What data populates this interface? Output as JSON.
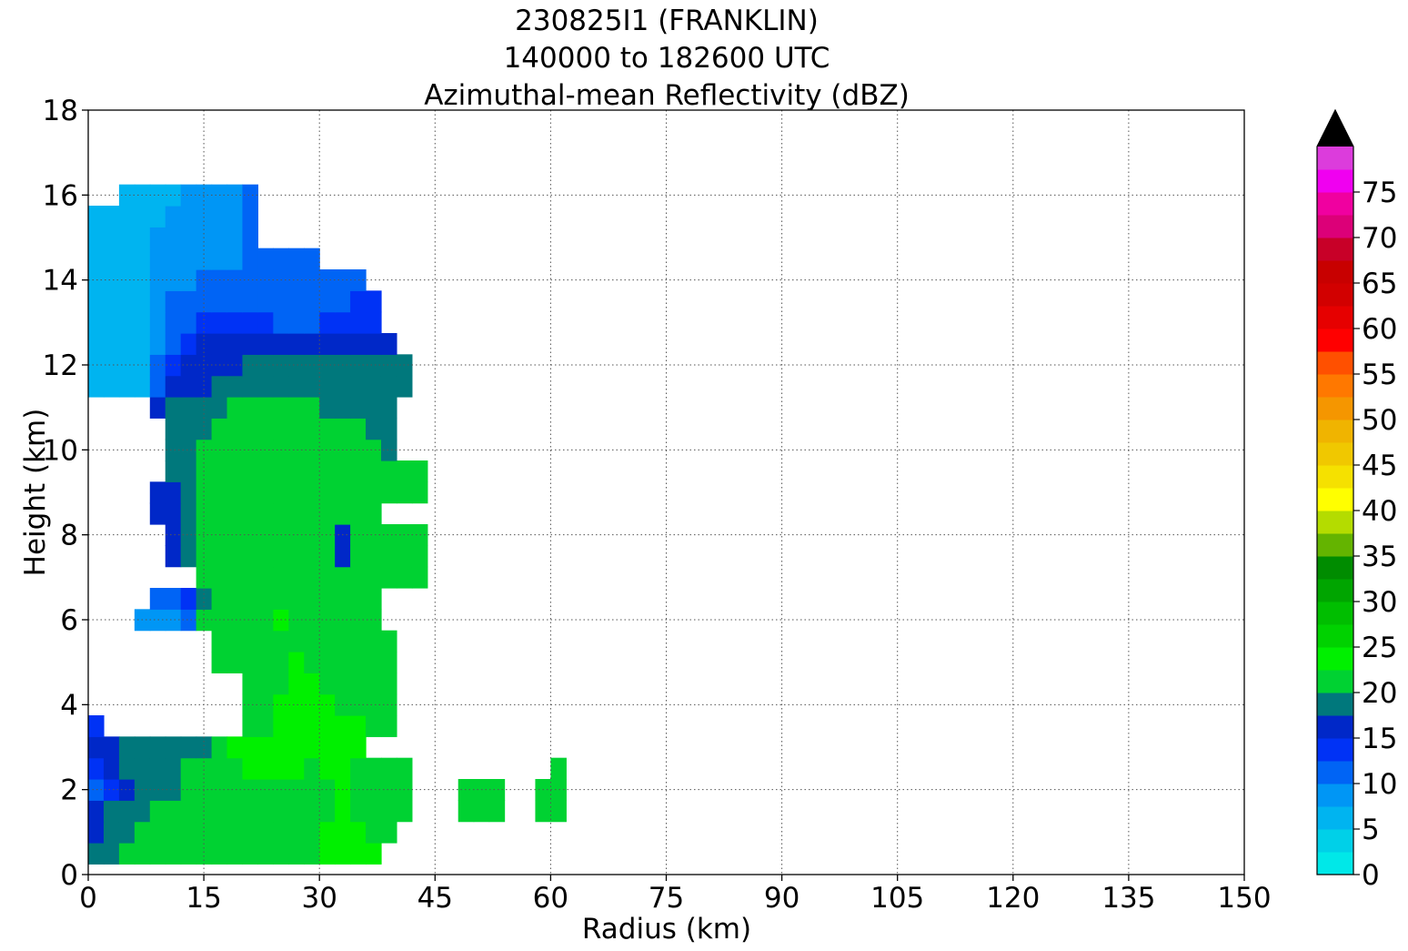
{
  "chart_data": {
    "type": "heatmap",
    "title_lines": [
      "230825I1 (FRANKLIN)",
      "140000 to 182600 UTC",
      "Azimuthal-mean Reflectivity (dBZ)"
    ],
    "xlabel": "Radius (km)",
    "ylabel": "Height (km)",
    "xlim": [
      0,
      150
    ],
    "ylim": [
      0,
      18
    ],
    "x_ticks": [
      "0",
      "15",
      "30",
      "45",
      "60",
      "75",
      "90",
      "105",
      "120",
      "135",
      "150"
    ],
    "y_ticks": [
      "0",
      "2",
      "4",
      "6",
      "8",
      "10",
      "12",
      "14",
      "16",
      "18"
    ],
    "grid": true,
    "colorbar": {
      "ticks": [
        "0",
        "5",
        "10",
        "15",
        "20",
        "25",
        "30",
        "35",
        "40",
        "45",
        "50",
        "55",
        "60",
        "65",
        "70",
        "75"
      ],
      "extend": "max",
      "levels": [
        0,
        2.5,
        5,
        7.5,
        10,
        12.5,
        15,
        17.5,
        20,
        22.5,
        25,
        27.5,
        30,
        32.5,
        35,
        37.5,
        40,
        42.5,
        45,
        47.5,
        50,
        52.5,
        55,
        57.5,
        60,
        62.5,
        65,
        67.5,
        70,
        72.5,
        75,
        77.5,
        80
      ],
      "colors": [
        "#00e8e8",
        "#00d0e8",
        "#00b4f0",
        "#0096f5",
        "#0064f5",
        "#0032f5",
        "#0028c8",
        "#00787c",
        "#00d232",
        "#00f000",
        "#00d200",
        "#00be00",
        "#00a500",
        "#008c00",
        "#64b400",
        "#b4dc00",
        "#ffff00",
        "#f5e100",
        "#f0c800",
        "#f0b400",
        "#f59600",
        "#ff7800",
        "#ff5000",
        "#ff0000",
        "#e60000",
        "#d20000",
        "#c80000",
        "#c80028",
        "#dc0078",
        "#f000a0",
        "#f000f0",
        "#dc3cdc",
        "#a050c8",
        "#7846a0",
        "#3c1e50"
      ],
      "over_color": "#000000"
    },
    "grid_spec": {
      "x0": 0,
      "dx": 2,
      "y0": 0.5,
      "dy": 0.5
    },
    "cells": [
      {
        "y": 0.5,
        "x0": 0,
        "vals": [
          17.5,
          19,
          20,
          20.5,
          20.5,
          20.5,
          20,
          20,
          20.5,
          20.5,
          20.5,
          20.5,
          20.5,
          20.5,
          20.5,
          22.5,
          23,
          23,
          23
        ]
      },
      {
        "y": 1.0,
        "x0": 0,
        "vals": [
          17,
          18.5,
          19.5,
          20,
          20.5,
          21,
          21,
          20.5,
          20.5,
          20.5,
          21,
          21,
          21,
          21,
          21,
          22.5,
          23,
          23,
          22,
          20.5
        ]
      },
      {
        "y": 1.5,
        "x0": 0,
        "vals": [
          16,
          17.5,
          19,
          19.5,
          20,
          20.5,
          20.5,
          20.5,
          20.5,
          21,
          21.5,
          21.5,
          21.5,
          21.5,
          21,
          22,
          22.5,
          22,
          21.5,
          21,
          20.5
        ],
        "extra": [
          {
            "x": 48,
            "vals": [
              20.5,
              20.5,
              20.5
            ]
          },
          {
            "x": 58,
            "vals": [
              20.5,
              20.5
            ]
          }
        ]
      },
      {
        "y": 2.0,
        "x0": 0,
        "vals": [
          10,
          14,
          17,
          18.5,
          19,
          19.5,
          20,
          20,
          20.5,
          21,
          22,
          22,
          22,
          22,
          21.5,
          22,
          22.5,
          22,
          21.5,
          21,
          20.5
        ],
        "extra": [
          {
            "x": 48,
            "vals": [
              20.5,
              20.5,
              20.5
            ]
          },
          {
            "x": 58,
            "vals": [
              20.5,
              20.5
            ]
          }
        ]
      },
      {
        "y": 2.5,
        "x0": 0,
        "vals": [
          14,
          16,
          18,
          19,
          19,
          19.5,
          20,
          20,
          21,
          22,
          22.5,
          22.5,
          22.5,
          22.5,
          22,
          22.5,
          22.5,
          22,
          21,
          20.5,
          20.5
        ],
        "extra": [
          {
            "x": 60,
            "vals": [
              20.5
            ]
          }
        ]
      },
      {
        "y": 3.0,
        "x0": 0,
        "vals": [
          15.5,
          17,
          17.5,
          17.5,
          17.5,
          18.5,
          19,
          19.5,
          21,
          22.5,
          23.5,
          24,
          24.5,
          24,
          23.5,
          23,
          23,
          22.5
        ]
      },
      {
        "y": 3.5,
        "x0": 0,
        "vals": [
          13
        ],
        "extra": [
          {
            "x": 20,
            "vals": [
              21.5,
              22,
              23,
              24,
              24.5,
              24,
              23.5,
              23,
              22,
              21.5
            ]
          }
        ]
      },
      {
        "y": 4.0,
        "x0": 20,
        "vals": [
          21.5,
          22,
          22.5,
          23,
          23,
          22.5,
          22,
          21.5,
          21.5,
          21.5
        ]
      },
      {
        "y": 4.5,
        "x0": 20,
        "vals": [
          21,
          21.5,
          22,
          22.5,
          22.5,
          22,
          21.5,
          21,
          21,
          21
        ]
      },
      {
        "y": 5.0,
        "x0": 16,
        "vals": [
          20.5,
          20.5,
          21,
          21.5,
          22,
          22.5,
          22,
          21.5,
          21,
          21,
          21,
          21
        ]
      },
      {
        "y": 5.5,
        "x0": 16,
        "vals": [
          20.5,
          20.5,
          21,
          21.5,
          22,
          22,
          21.5,
          21,
          21,
          21,
          21,
          21
        ]
      },
      {
        "y": 6.0,
        "x0": 6,
        "vals": [
          7.5,
          9,
          9,
          12,
          20.5,
          21,
          21,
          21.5,
          22,
          22.5,
          22,
          21.5,
          21,
          21,
          21,
          21
        ]
      },
      {
        "y": 6.5,
        "x0": 8,
        "vals": [
          12,
          12,
          13,
          19.5,
          20.5,
          20.5,
          21,
          21.5,
          22,
          22,
          21.5,
          21,
          21,
          21,
          21
        ]
      },
      {
        "y": 7.0,
        "x0": 14,
        "vals": [
          20,
          20.5,
          20.5,
          21,
          21,
          21,
          21,
          20.5,
          20.5,
          20.5,
          20.5,
          20.5,
          20.5,
          20.5,
          20.5
        ]
      },
      {
        "y": 7.5,
        "x0": 10,
        "vals": [
          15,
          19.5,
          20,
          20.5,
          20.5,
          20.5,
          20.5,
          20.5,
          20.5,
          20.5,
          20.5,
          17,
          20.5,
          20.5,
          20.5,
          20.5,
          20.5
        ]
      },
      {
        "y": 8.0,
        "x0": 10,
        "vals": [
          16,
          19.5,
          20,
          20.5,
          20.5,
          20.5,
          20.5,
          20.5,
          20.5,
          20.5,
          20.5,
          16,
          20.5,
          20.5,
          20.5,
          20.5,
          20.5
        ]
      },
      {
        "y": 8.5,
        "x0": 8,
        "vals": [
          15,
          16,
          19.5,
          20,
          20.5,
          21.5,
          20.5,
          20.5,
          20.5,
          20.5,
          20.5,
          20.5,
          20.5,
          20.5,
          20.5
        ]
      },
      {
        "y": 9.0,
        "x0": 8,
        "vals": [
          15,
          16,
          19.5,
          20,
          20.5,
          20.5,
          20.5,
          20.5,
          20.5,
          20.5,
          20.5,
          20.5,
          20.5,
          20.5,
          20.5,
          20,
          20,
          20
        ]
      },
      {
        "y": 9.5,
        "x0": 10,
        "vals": [
          19.5,
          19.5,
          20,
          20.5,
          20.5,
          20.5,
          20.5,
          20.5,
          20.5,
          20.5,
          20.5,
          20.5,
          20.5,
          20,
          20,
          20,
          20
        ]
      },
      {
        "y": 10.0,
        "x0": 10,
        "vals": [
          19,
          19.5,
          20,
          20.5,
          20.5,
          20.5,
          20.5,
          20.5,
          20.5,
          20.5,
          20.5,
          20,
          20,
          20,
          19
        ]
      },
      {
        "y": 10.5,
        "x0": 10,
        "vals": [
          19,
          19,
          19.5,
          20,
          20.5,
          20.5,
          20.5,
          20.5,
          20.5,
          20.5,
          20,
          20,
          20,
          19.5,
          19
        ]
      },
      {
        "y": 11.0,
        "x0": 8,
        "vals": [
          16,
          18.5,
          19,
          19.5,
          19.5,
          20,
          20,
          20,
          20,
          20,
          20,
          19.5,
          19.5,
          19,
          19,
          19
        ]
      },
      {
        "y": 11.5,
        "x0": 0,
        "vals": [
          5,
          5,
          5,
          5,
          12,
          15,
          16,
          17,
          18,
          18.5,
          19,
          19.5,
          19.5,
          19.5,
          19.5,
          19.5,
          19,
          19,
          19,
          19,
          19
        ]
      },
      {
        "y": 12.0,
        "x0": 0,
        "vals": [
          5,
          5,
          5,
          5,
          10,
          14,
          16,
          17,
          17,
          17,
          17.5,
          18,
          18,
          18,
          18.5,
          18.5,
          18.5,
          18.5,
          18.5,
          18.5,
          18.5
        ]
      },
      {
        "y": 12.5,
        "x0": 0,
        "vals": [
          5,
          5,
          5,
          5,
          9,
          12,
          14,
          15.5,
          16,
          16,
          16,
          16,
          16,
          16,
          16,
          16.5,
          17,
          17,
          17,
          17
        ]
      },
      {
        "y": 13.0,
        "x0": 0,
        "vals": [
          5,
          5,
          5,
          6,
          8,
          10,
          12,
          13,
          13.5,
          13,
          13,
          12.5,
          12,
          12,
          12,
          12.5,
          13.5,
          14,
          14
        ]
      },
      {
        "y": 13.5,
        "x0": 0,
        "vals": [
          6,
          5,
          5,
          7,
          8,
          10,
          11,
          11,
          11,
          11,
          11,
          11,
          11,
          11,
          11,
          11,
          12,
          13,
          13
        ]
      },
      {
        "y": 14.0,
        "x0": 0,
        "vals": [
          6,
          6,
          6,
          7,
          8,
          9,
          9,
          10,
          10,
          10,
          10,
          10,
          10,
          10,
          10,
          10,
          11,
          11
        ]
      },
      {
        "y": 14.5,
        "x0": 0,
        "vals": [
          6,
          6,
          6,
          7,
          8,
          8,
          8,
          9,
          9,
          9,
          10,
          10,
          10,
          10,
          10
        ]
      },
      {
        "y": 15.0,
        "x0": 0,
        "vals": [
          6,
          6,
          6,
          7,
          8,
          8,
          8,
          8,
          9,
          9,
          10
        ]
      },
      {
        "y": 15.5,
        "x0": 0,
        "vals": [
          6,
          6,
          5,
          6,
          7,
          8,
          8,
          8,
          9,
          9,
          10
        ]
      },
      {
        "y": 16.0,
        "x0": 4,
        "vals": [
          5,
          5,
          6,
          7,
          8,
          8,
          9,
          9,
          10
        ]
      }
    ]
  }
}
